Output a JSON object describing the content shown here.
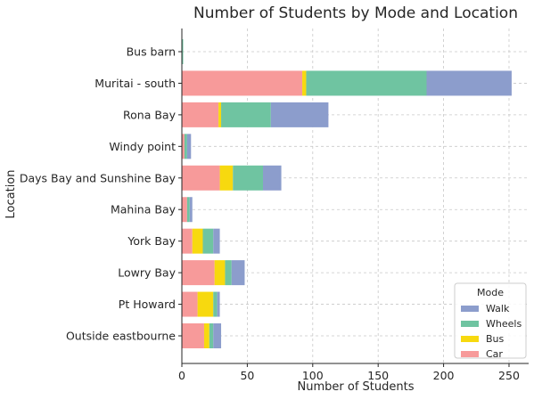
{
  "chart_data": {
    "type": "bar",
    "orientation": "horizontal",
    "stacked": true,
    "title": "Number of Students by Mode and Location",
    "xlabel": "Number of Students",
    "ylabel": "Location",
    "xlim": [
      0,
      265
    ],
    "xticks": [
      0,
      50,
      100,
      150,
      200,
      250
    ],
    "grid": true,
    "categories": [
      "Bus barn",
      "Muritai - south",
      "Rona Bay",
      "Windy point",
      "Days Bay and Sunshine Bay",
      "Mahina Bay",
      "York Bay",
      "Lowry Bay",
      "Pt Howard",
      "Outside eastbourne"
    ],
    "series": [
      {
        "name": "Car",
        "color": "#f79a9a",
        "values": [
          0,
          92,
          28,
          2,
          29,
          4,
          8,
          25,
          12,
          17
        ]
      },
      {
        "name": "Bus",
        "color": "#f7d90f",
        "values": [
          0,
          3,
          2,
          0,
          10,
          0,
          8,
          8,
          12,
          4
        ]
      },
      {
        "name": "Wheels",
        "color": "#6fc4a1",
        "values": [
          1,
          92,
          38,
          2,
          23,
          2,
          8,
          5,
          3,
          3
        ]
      },
      {
        "name": "Walk",
        "color": "#8c9dcc",
        "values": [
          0,
          65,
          44,
          3,
          14,
          2,
          5,
          10,
          2,
          6
        ]
      }
    ],
    "legend": {
      "title": "Mode",
      "placement": "lower-right",
      "order": [
        "Walk",
        "Wheels",
        "Bus",
        "Car"
      ]
    }
  }
}
